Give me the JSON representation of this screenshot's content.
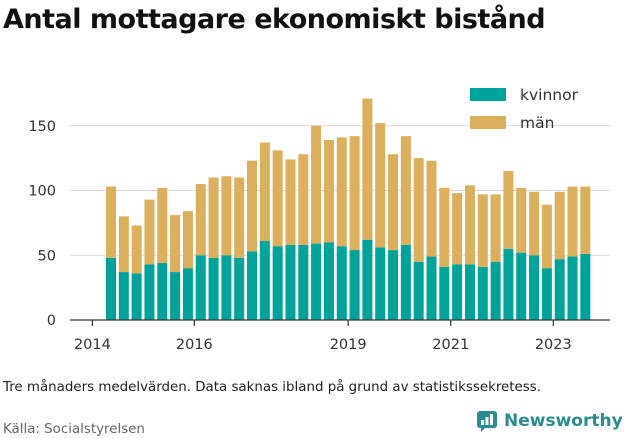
{
  "title": "Antal mottagare ekonomiskt bistånd",
  "note": "Tre månaders medelvärden. Data saknas ibland på grund av statistikssekretess.",
  "source": "Källa: Socialstyrelsen",
  "brand": {
    "name": "Newsworthy",
    "icon": "newsworthy-logo-icon",
    "color": "#2a8c8e"
  },
  "chart_data": {
    "type": "bar",
    "stacked": true,
    "x": [
      "2014-Q2",
      "2014-Q3",
      "2014-Q4",
      "2015-Q1",
      "2015-Q2",
      "2015-Q3",
      "2015-Q4",
      "2016-Q1",
      "2016-Q2",
      "2016-Q3",
      "2016-Q4",
      "2017-Q1",
      "2017-Q2",
      "2017-Q3",
      "2017-Q4",
      "2018-Q1",
      "2018-Q2",
      "2018-Q3",
      "2018-Q4",
      "2019-Q1",
      "2019-Q2",
      "2019-Q3",
      "2019-Q4",
      "2020-Q1",
      "2020-Q2",
      "2020-Q3",
      "2020-Q4",
      "2021-Q1",
      "2021-Q2",
      "2021-Q3",
      "2021-Q4",
      "2022-Q1",
      "2022-Q2",
      "2022-Q3",
      "2022-Q4",
      "2023-Q1",
      "2023-Q2",
      "2023-Q3"
    ],
    "series": [
      {
        "name": "kvinnor",
        "color": "#00a39a",
        "values": [
          48,
          37,
          36,
          43,
          44,
          37,
          40,
          50,
          48,
          50,
          48,
          53,
          61,
          57,
          58,
          58,
          59,
          60,
          57,
          54,
          62,
          56,
          54,
          58,
          45,
          49,
          41,
          43,
          43,
          41,
          45,
          55,
          52,
          50,
          40,
          47,
          49,
          51
        ]
      },
      {
        "name": "män",
        "color": "#dbaf5c",
        "values": [
          55,
          43,
          37,
          50,
          58,
          44,
          44,
          55,
          62,
          61,
          62,
          70,
          76,
          74,
          66,
          70,
          91,
          79,
          84,
          88,
          109,
          96,
          74,
          84,
          80,
          74,
          61,
          55,
          61,
          56,
          52,
          60,
          50,
          49,
          49,
          52,
          54,
          52
        ]
      }
    ],
    "x_ticks": [
      "2014",
      "2016",
      "2019",
      "2021",
      "2023"
    ],
    "y_ticks": [
      "0",
      "50",
      "100",
      "150"
    ],
    "ylim": [
      0,
      175
    ],
    "grid": true,
    "legend": {
      "placement": "top-right",
      "entries": [
        "kvinnor",
        "män"
      ]
    },
    "xlabel": "",
    "ylabel": ""
  }
}
